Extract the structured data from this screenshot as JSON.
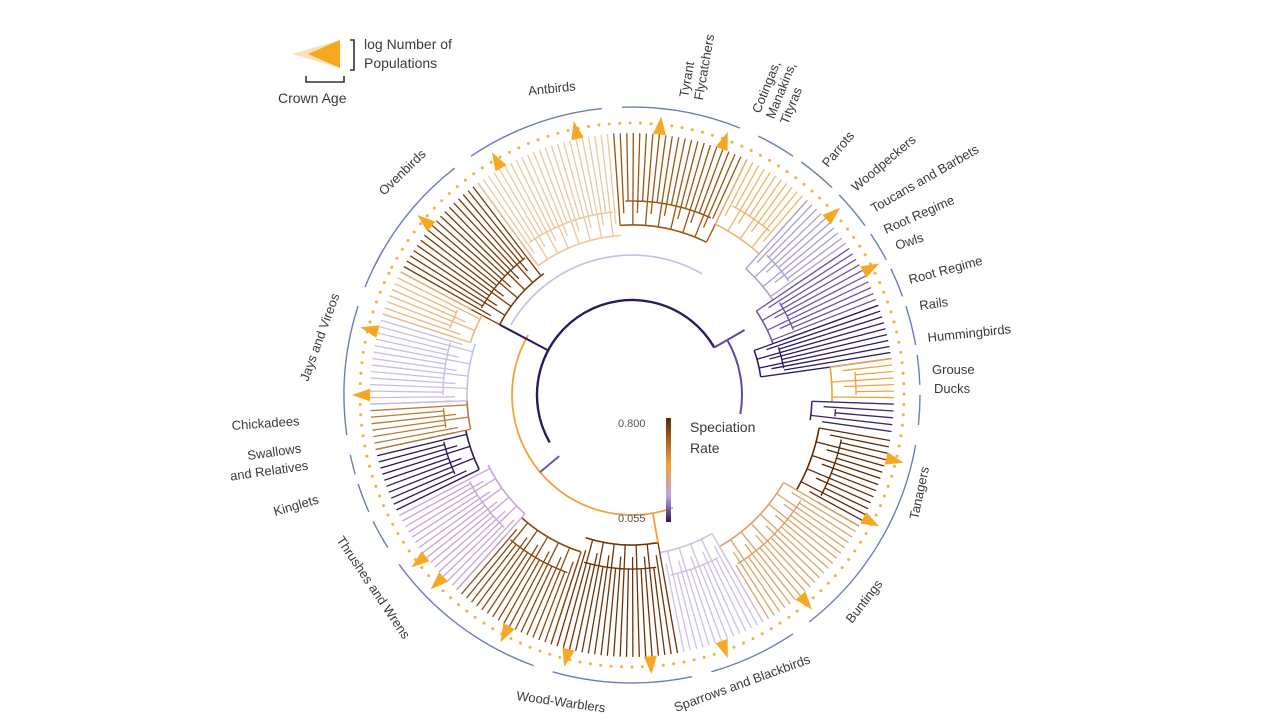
{
  "legend": {
    "populations_line1": "log Number of",
    "populations_line2": "Populations",
    "crown_age": "Crown Age"
  },
  "color_scale": {
    "title_line1": "Speciation",
    "title_line2": "Rate",
    "max_label": "0.800",
    "min_label": "0.055",
    "max_color": "#5a2a05",
    "mid_color": "#f2a23c",
    "min_color": "#2b1a5e"
  },
  "colors": {
    "outer_ring": "#6b7fb0",
    "triangle": "#f6a823",
    "dots": "#f3b13a"
  },
  "clades": [
    {
      "id": "antbirds",
      "label": "Antbirds"
    },
    {
      "id": "tyrant-flycatchers",
      "label": "Tyrant Flycatchers"
    },
    {
      "id": "cotingas",
      "label": "Cotingas, Manakins, Tityras"
    },
    {
      "id": "parrots",
      "label": "Parrots"
    },
    {
      "id": "woodpeckers",
      "label": "Woodpeckers"
    },
    {
      "id": "toucans",
      "label": "Toucans and Barbets"
    },
    {
      "id": "root-regime-1",
      "label": "Root Regime"
    },
    {
      "id": "owls",
      "label": "Owls"
    },
    {
      "id": "root-regime-2",
      "label": "Root Regime"
    },
    {
      "id": "rails",
      "label": "Rails"
    },
    {
      "id": "hummingbirds",
      "label": "Hummingbirds"
    },
    {
      "id": "grouse",
      "label": "Grouse"
    },
    {
      "id": "ducks",
      "label": "Ducks"
    },
    {
      "id": "tanagers",
      "label": "Tanagers"
    },
    {
      "id": "buntings",
      "label": "Buntings"
    },
    {
      "id": "sparrows",
      "label": "Sparrows and Blackbirds"
    },
    {
      "id": "wood-warblers",
      "label": "Wood-Warblers"
    },
    {
      "id": "thrushes",
      "label": "Thrushes and Wrens"
    },
    {
      "id": "kinglets",
      "label": "Kinglets"
    },
    {
      "id": "swallows",
      "label": "Swallows and Relatives"
    },
    {
      "id": "chickadees",
      "label": "Chickadees"
    },
    {
      "id": "jays",
      "label": "Jays and Vireos"
    },
    {
      "id": "ovenbirds",
      "label": "Ovenbirds"
    }
  ]
}
